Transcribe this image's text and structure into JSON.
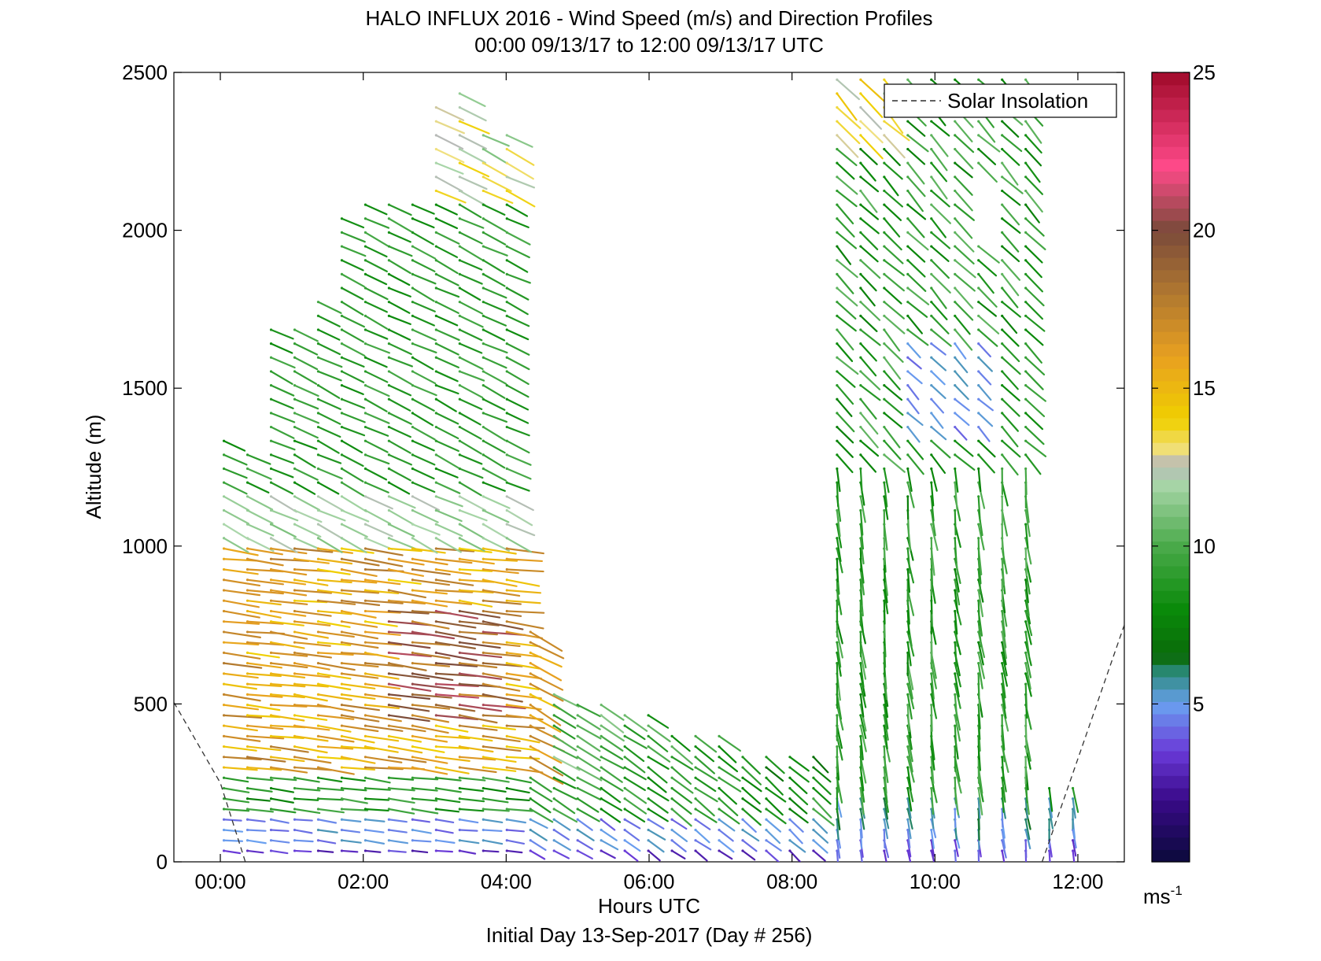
{
  "chart_data": {
    "type": "quiver",
    "title": "HALO INFLUX 2016 - Wind Speed (m/s) and Direction Profiles",
    "subtitle": "00:00 09/13/17 to 12:00 09/13/17  UTC",
    "xlabel": "Hours UTC",
    "footer": "Initial Day 13-Sep-2017 (Day # 256)",
    "ylabel": "Altitude (m)",
    "xlim": [
      -0.65,
      12.65
    ],
    "ylim": [
      0,
      2500
    ],
    "x_ticks": [
      0,
      2,
      4,
      6,
      8,
      10,
      12
    ],
    "x_tick_labels": [
      "00:00",
      "02:00",
      "04:00",
      "06:00",
      "08:00",
      "10:00",
      "12:00"
    ],
    "y_ticks": [
      0,
      500,
      1000,
      1500,
      2000,
      2500
    ],
    "y_tick_labels": [
      "0",
      "500",
      "1000",
      "1500",
      "2000",
      "2500"
    ],
    "colorbar": {
      "min": 0,
      "max": 25,
      "ticks": [
        5,
        10,
        15,
        20,
        25
      ],
      "tick_labels": [
        "5",
        "10",
        "15",
        "20",
        "25"
      ],
      "unit_base": "ms",
      "unit_exp": "-1",
      "stops": [
        {
          "value": 0,
          "color": "#0a0a3a"
        },
        {
          "value": 2,
          "color": "#3a0a8a"
        },
        {
          "value": 3.5,
          "color": "#6a3ad8"
        },
        {
          "value": 5,
          "color": "#6aa0f0"
        },
        {
          "value": 6,
          "color": "#2a8a7a"
        },
        {
          "value": 6.5,
          "color": "#0a6a0a"
        },
        {
          "value": 8,
          "color": "#0a8a0a"
        },
        {
          "value": 10,
          "color": "#4aaa4a"
        },
        {
          "value": 12,
          "color": "#aad6aa"
        },
        {
          "value": 12.6,
          "color": "#b8b8b8"
        },
        {
          "value": 13,
          "color": "#f0e080"
        },
        {
          "value": 14,
          "color": "#f0d000"
        },
        {
          "value": 16,
          "color": "#e8a020"
        },
        {
          "value": 18,
          "color": "#b07830"
        },
        {
          "value": 20,
          "color": "#7a4a3a"
        },
        {
          "value": 22,
          "color": "#ff4a8a"
        },
        {
          "value": 25,
          "color": "#a00a2a"
        }
      ]
    },
    "legend": {
      "label": "Solar Insolation",
      "position": "top-right",
      "line_style": "dashed"
    },
    "solar_insolation": {
      "x": [
        -0.65,
        0.0,
        0.35,
        11.5,
        12.65
      ],
      "y": [
        505,
        250,
        0,
        0,
        750
      ]
    },
    "wind_profiles": {
      "start_hour": 0.05,
      "end_hour": 12.0,
      "step_hours": 0.33,
      "gates_below_1000m_step": 33,
      "gates_above_1000m_step": 44
    }
  }
}
